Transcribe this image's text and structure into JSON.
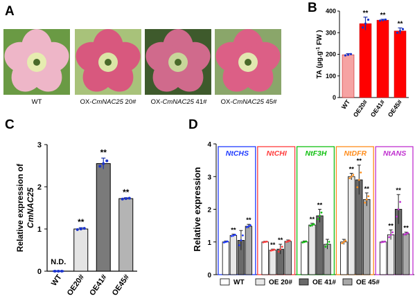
{
  "panelA": {
    "letter": "A",
    "photos": [
      {
        "label_pre": "WT",
        "label_gene": "",
        "label_post": "",
        "petal_color": "#eeb6c8",
        "center_color": "#e6ecb0",
        "bg_color": "#6a9a44"
      },
      {
        "label_pre": "OX-",
        "label_gene": "CmNAC25",
        "label_post": " 20#",
        "petal_color": "#d8587e",
        "center_color": "#dbe5a6",
        "bg_color": "#a8c27a"
      },
      {
        "label_pre": "OX-",
        "label_gene": "CmNAC25",
        "label_post": " 41#",
        "petal_color": "#d06a8c",
        "center_color": "#c8d69a",
        "bg_color": "#3e5a2c"
      },
      {
        "label_pre": "OX-",
        "label_gene": "CmNAC25",
        "label_post": " 45#",
        "petal_color": "#dc5f86",
        "center_color": "#e2e8b0",
        "bg_color": "#8aa66a"
      }
    ]
  },
  "panelB": {
    "letter": "B",
    "chart_data": {
      "type": "bar",
      "categories": [
        "WT",
        "OE20#",
        "OE41#",
        "OE45#"
      ],
      "values": [
        198,
        342,
        358,
        308
      ],
      "errors": [
        5,
        30,
        4,
        14
      ],
      "significance": [
        "",
        "**",
        "**",
        "**"
      ],
      "ylabel_pre": "TA (",
      "ylabel_unit_base": "μg.g",
      "ylabel_sup": "-1",
      "ylabel_post": " FW )",
      "ylim": [
        0,
        400
      ],
      "yticks": [
        0,
        100,
        200,
        300,
        400
      ],
      "bar_colors": [
        "#f6a3a3",
        "#ff0000",
        "#ff0000",
        "#ff0000"
      ]
    }
  },
  "panelC": {
    "letter": "C",
    "chart_data": {
      "type": "bar",
      "categories": [
        "WT",
        "OE20#",
        "OE41#",
        "OE45#"
      ],
      "values": [
        0,
        1.0,
        2.55,
        1.72
      ],
      "errors": [
        0,
        0.03,
        0.13,
        0.02
      ],
      "significance": [
        "",
        "**",
        "**",
        "**"
      ],
      "value_labels": [
        "N.D.",
        "",
        "",
        ""
      ],
      "ylabel_line1": "Relative expression of",
      "ylabel_line2": "CmNAC25",
      "ylim": [
        0,
        3
      ],
      "yticks": [
        0,
        1,
        2,
        3
      ],
      "bar_colors": [
        "#ffffff",
        "#e4e4e4",
        "#7a7a7a",
        "#b4b4b4"
      ]
    }
  },
  "panelD": {
    "letter": "D",
    "chart_data": {
      "type": "bar",
      "ylabel": "Relative expression",
      "ylim": [
        0,
        4
      ],
      "yticks": [
        0,
        1,
        2,
        3,
        4
      ],
      "groups": [
        {
          "name": "NtCHS",
          "color": "#1f3bff",
          "values": [
            1.0,
            1.2,
            1.05,
            1.48
          ],
          "errors": [
            0.03,
            0.04,
            0.3,
            0.06
          ],
          "sig": [
            "",
            "**",
            "",
            "**"
          ]
        },
        {
          "name": "NtCHI",
          "color": "#ff3b3b",
          "values": [
            1.0,
            0.75,
            0.78,
            1.02
          ],
          "errors": [
            0.02,
            0.03,
            0.15,
            0.04
          ],
          "sig": [
            "",
            "**",
            "**",
            ""
          ]
        },
        {
          "name": "NtF3H",
          "color": "#10c010",
          "values": [
            1.0,
            1.52,
            1.8,
            0.93
          ],
          "errors": [
            0.03,
            0.05,
            0.2,
            0.15
          ],
          "sig": [
            "",
            "**",
            "**",
            ""
          ]
        },
        {
          "name": "NtDFR",
          "color": "#ff8c1a",
          "values": [
            1.0,
            3.0,
            2.9,
            2.3
          ],
          "errors": [
            0.08,
            0.1,
            0.45,
            0.2
          ],
          "sig": [
            "",
            "**",
            "**",
            "**"
          ]
        },
        {
          "name": "NtANS",
          "color": "#c030d0",
          "values": [
            1.0,
            1.22,
            2.0,
            1.25
          ],
          "errors": [
            0.02,
            0.15,
            0.45,
            0.05
          ],
          "sig": [
            "",
            "**",
            "**",
            "**"
          ]
        }
      ],
      "series": [
        {
          "name": "WT",
          "color": "#ffffff"
        },
        {
          "name": "OE 20#",
          "color": "#e8e8e8"
        },
        {
          "name": "OE 41#",
          "color": "#6a6a6a"
        },
        {
          "name": "OE 45#",
          "color": "#a8a8a8"
        }
      ]
    }
  }
}
